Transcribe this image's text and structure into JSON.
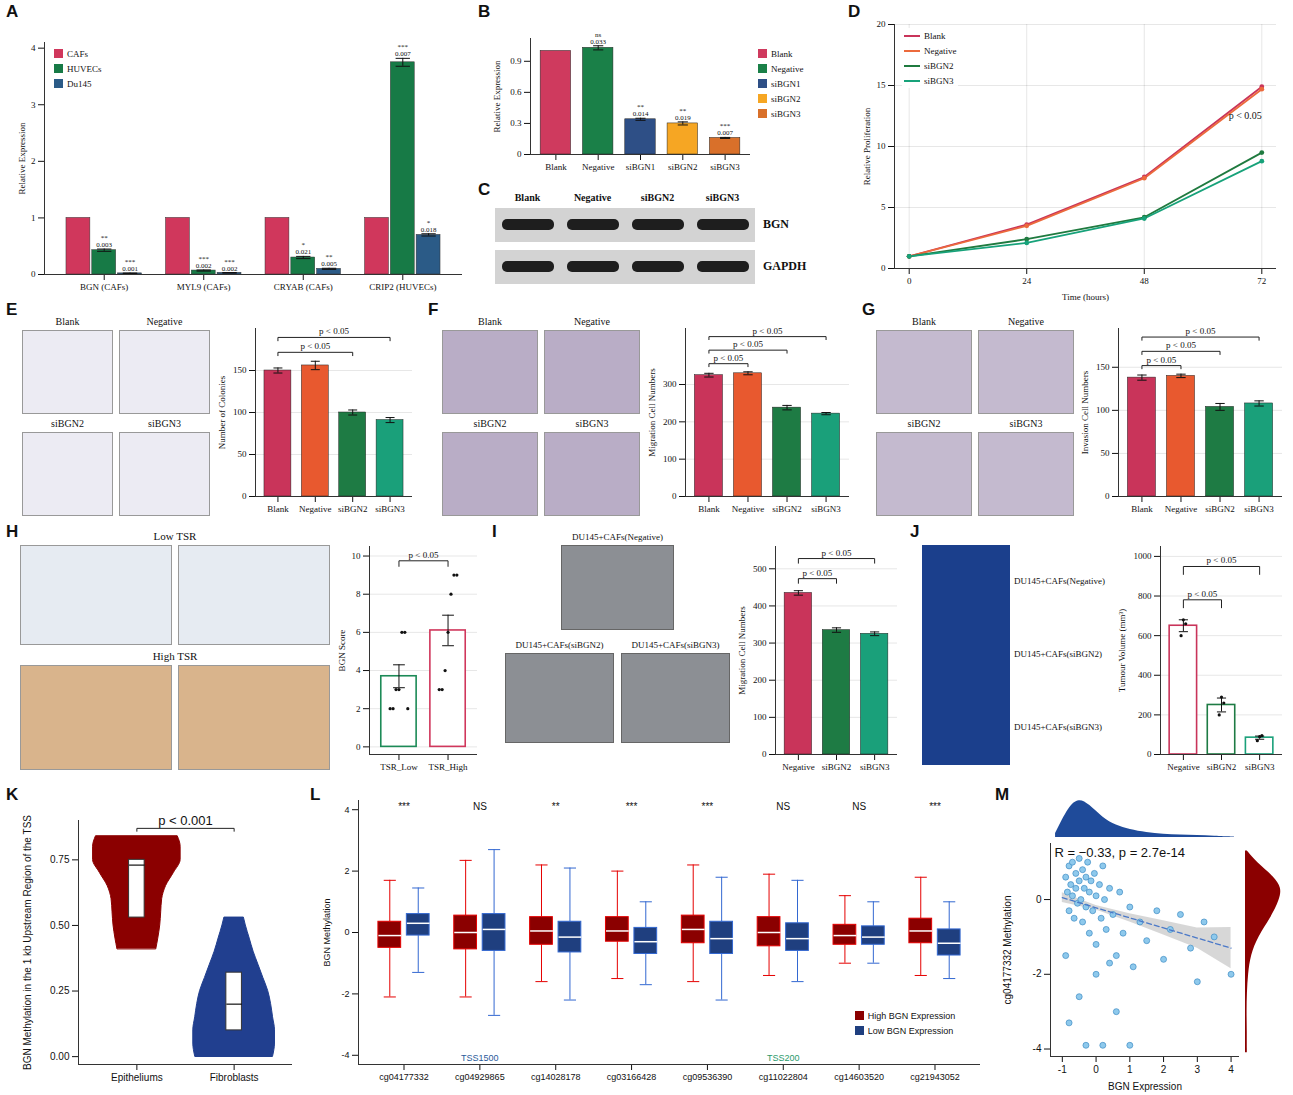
{
  "chart_data": [
    {
      "panel": "A",
      "type": "bar",
      "categories": [
        "BGN (CAFs)",
        "MYL9 (CAFs)",
        "CRYAB (CAFs)",
        "CRIP2 (HUVECs)"
      ],
      "series": [
        {
          "name": "CAFs",
          "color": "#d0375c",
          "values": [
            1,
            1,
            1,
            1
          ]
        },
        {
          "name": "HUVECs",
          "color": "#177a46",
          "values": [
            0.43,
            0.07,
            0.3,
            3.75
          ],
          "errors": [
            0.02,
            0.01,
            0.02,
            0.07
          ],
          "sig": [
            "**",
            "***",
            "*",
            "***"
          ],
          "p_values": [
            0.003,
            0.002,
            0.021,
            0.007
          ]
        },
        {
          "name": "Du145",
          "color": "#2b5b87",
          "values": [
            0.02,
            0.03,
            0.1,
            0.7
          ],
          "errors": [
            0.005,
            0.005,
            0.01,
            0.02
          ],
          "sig": [
            "***",
            "***",
            "**",
            "*"
          ],
          "p_values": [
            0.001,
            0.002,
            0.005,
            0.018
          ]
        }
      ],
      "ylabel": "Relative Expression",
      "ylim": [
        0,
        4.1
      ],
      "yticks": [
        0,
        1,
        2,
        3,
        4
      ],
      "legend": "top-left",
      "grid": false
    },
    {
      "panel": "B",
      "type": "bar",
      "categories": [
        "Blank",
        "Negative",
        "siBGN1",
        "siBGN2",
        "siBGN3"
      ],
      "values": [
        1,
        1.03,
        0.34,
        0.3,
        0.16
      ],
      "errors": [
        null,
        0.02,
        0.01,
        0.015,
        0.005
      ],
      "sig": [
        null,
        "ns",
        "**",
        "**",
        "***"
      ],
      "p_values": [
        null,
        0.033,
        0.014,
        0.019,
        0.007
      ],
      "colors": [
        "#cf3a5e",
        "#1a8048",
        "#2e4f86",
        "#f6a623",
        "#d9702a"
      ],
      "ylabel": "Relative Expression",
      "ylim": [
        0,
        1.12
      ],
      "yticks": [
        0,
        0.3,
        0.6,
        0.9
      ],
      "legend": "right",
      "grid": false
    },
    {
      "panel": "C",
      "type": "blot",
      "lanes": [
        "Blank",
        "Negative",
        "siBGN2",
        "siBGN3"
      ],
      "rows": [
        "BGN",
        "GAPDH"
      ]
    },
    {
      "panel": "D",
      "type": "line",
      "x": [
        0,
        24,
        48,
        72
      ],
      "series": [
        {
          "name": "Blank",
          "color": "#c9345a",
          "values": [
            1,
            3.6,
            7.5,
            14.9
          ]
        },
        {
          "name": "Negative",
          "color": "#ec6a3c",
          "values": [
            1,
            3.5,
            7.4,
            14.7
          ]
        },
        {
          "name": "siBGN2",
          "color": "#1f7a3f",
          "values": [
            1,
            2.4,
            4.2,
            9.5
          ]
        },
        {
          "name": "siBGN3",
          "color": "#17a27a",
          "values": [
            1,
            2.1,
            4.1,
            8.8
          ]
        }
      ],
      "xlabel": "Time (hours)",
      "ylabel": "Relative Proliferation",
      "xlim": [
        -3,
        75
      ],
      "xticks": [
        0,
        24,
        48,
        72
      ],
      "ylim": [
        0,
        20
      ],
      "yticks": [
        0,
        5,
        10,
        15,
        20
      ],
      "grid": true,
      "legend": "top-left",
      "marker": "circle",
      "annotations": [
        {
          "x": 72,
          "y": 12.5,
          "text": "p < 0.05"
        }
      ]
    },
    {
      "panel": "E",
      "type": "bar",
      "image_labels": [
        "Blank",
        "Negative",
        "siBGN2",
        "siBGN3"
      ],
      "categories": [
        "Blank",
        "Negative",
        "siBGN2",
        "siBGN3"
      ],
      "values": [
        150,
        156,
        100,
        91
      ],
      "errors": [
        3,
        5,
        3,
        3
      ],
      "colors": [
        "#c9345a",
        "#e8592f",
        "#1e7b44",
        "#1aa07a"
      ],
      "ylabel": "Number of Colonies",
      "ylim": [
        0,
        200
      ],
      "yticks": [
        0,
        50,
        100,
        150
      ],
      "grid": true,
      "brackets": [
        {
          "from": "Blank",
          "to": "siBGN2",
          "text": "p < 0.05"
        },
        {
          "from": "Blank",
          "to": "siBGN3",
          "text": "p < 0.05"
        }
      ]
    },
    {
      "panel": "F",
      "type": "bar",
      "image_labels": [
        "Blank",
        "Negative",
        "siBGN2",
        "siBGN3"
      ],
      "categories": [
        "Blank",
        "Negative",
        "siBGN2",
        "siBGN3"
      ],
      "values": [
        325,
        330,
        238,
        222
      ],
      "errors": [
        5,
        4,
        6,
        3
      ],
      "colors": [
        "#c9345a",
        "#e8592f",
        "#1e7b44",
        "#1aa07a"
      ],
      "ylabel": "Migration Cell Numbers",
      "ylim": [
        0,
        450
      ],
      "yticks": [
        0,
        100,
        200,
        300
      ],
      "grid": true,
      "brackets": [
        {
          "from": "Blank",
          "to": "Negative",
          "text": "p < 0.05"
        },
        {
          "from": "Blank",
          "to": "siBGN2",
          "text": "p < 0.05"
        },
        {
          "from": "Blank",
          "to": "siBGN3",
          "text": "p < 0.05"
        }
      ]
    },
    {
      "panel": "G",
      "type": "bar",
      "image_labels": [
        "Blank",
        "Negative",
        "siBGN2",
        "siBGN3"
      ],
      "categories": [
        "Blank",
        "Negative",
        "siBGN2",
        "siBGN3"
      ],
      "values": [
        138,
        140,
        104,
        108
      ],
      "errors": [
        3,
        2,
        4,
        3
      ],
      "colors": [
        "#c9345a",
        "#e8592f",
        "#1e7b44",
        "#1aa07a"
      ],
      "ylabel": "Invasion Cell Numbers",
      "ylim": [
        0,
        195
      ],
      "yticks": [
        0,
        50,
        100,
        150
      ],
      "grid": true,
      "brackets": [
        {
          "from": "Blank",
          "to": "Negative",
          "text": "p < 0.05"
        },
        {
          "from": "Blank",
          "to": "siBGN2",
          "text": "p < 0.05"
        },
        {
          "from": "Blank",
          "to": "siBGN3",
          "text": "p < 0.05"
        }
      ]
    },
    {
      "panel": "H",
      "type": "bar",
      "image_labels": [
        "Low TSR",
        "High TSR"
      ],
      "categories": [
        "TSR_Low",
        "TSR_High"
      ],
      "values": [
        3.7,
        6.1
      ],
      "errors": [
        0.6,
        0.8
      ],
      "points": [
        [
          2,
          2,
          3,
          3,
          6,
          6,
          2
        ],
        [
          3,
          3,
          4,
          6,
          8,
          9,
          9
        ]
      ],
      "colors": [
        "#1c8a57",
        "#d0375c"
      ],
      "ylabel": "BGN Score",
      "ylim": [
        -0.4,
        10.5
      ],
      "yticks": [
        0,
        2,
        4,
        6,
        8,
        10
      ],
      "grid": true,
      "brackets": [
        {
          "from": "TSR_Low",
          "to": "TSR_High",
          "text": "p < 0.05"
        }
      ]
    },
    {
      "panel": "I",
      "type": "bar",
      "image_labels": [
        "DU145+CAFs(Negative)",
        "DU145+CAFs(siBGN2)",
        "DU145+CAFs(siBGN3)"
      ],
      "categories": [
        "Negative",
        "siBGN2",
        "siBGN3"
      ],
      "values": [
        435,
        335,
        325
      ],
      "errors": [
        6,
        6,
        5
      ],
      "colors": [
        "#c9345a",
        "#1e7b44",
        "#1aa07a"
      ],
      "ylabel": "Migration Cell Numbers",
      "ylim": [
        0,
        560
      ],
      "yticks": [
        0,
        100,
        200,
        300,
        400,
        500
      ],
      "grid": true,
      "brackets": [
        {
          "from": "Negative",
          "to": "siBGN2",
          "text": "p < 0.05"
        },
        {
          "from": "Negative",
          "to": "siBGN3",
          "text": "p < 0.05"
        }
      ]
    },
    {
      "panel": "J",
      "type": "bar",
      "image_labels": [
        "DU145+CAFs(Negative)",
        "DU145+CAFs(siBGN2)",
        "DU145+CAFs(siBGN3)"
      ],
      "categories": [
        "Negative",
        "siBGN2",
        "siBGN3"
      ],
      "values": [
        650,
        250,
        85
      ],
      "errors": [
        30,
        35,
        8
      ],
      "points": [
        [
          600,
          680,
          660
        ],
        [
          200,
          290,
          260
        ],
        [
          70,
          90,
          95
        ]
      ],
      "colors": [
        "#c9345a",
        "#1e7b44",
        "#1aa07a"
      ],
      "ylabel": "Tumour Volume (mm³)",
      "ylim": [
        0,
        1050
      ],
      "yticks": [
        0,
        200,
        400,
        600,
        800,
        1000
      ],
      "grid": true,
      "brackets": [
        {
          "from": "Negative",
          "to": "siBGN2",
          "text": "p < 0.05"
        },
        {
          "from": "Negative",
          "to": "siBGN3",
          "text": "p < 0.05"
        }
      ]
    },
    {
      "panel": "K",
      "type": "violin",
      "categories": [
        "Epitheliums",
        "Fibroblasts"
      ],
      "colors": [
        "#8b0000",
        "#213f8f"
      ],
      "violins": [
        {
          "y": [
            0.41,
            0.45,
            0.5,
            0.55,
            0.6,
            0.65,
            0.7,
            0.75,
            0.8,
            0.84
          ],
          "half_width": [
            0.2,
            0.22,
            0.24,
            0.25,
            0.26,
            0.3,
            0.38,
            0.45,
            0.45,
            0.42
          ]
        },
        {
          "y": [
            0,
            0.05,
            0.1,
            0.15,
            0.2,
            0.25,
            0.3,
            0.35,
            0.4,
            0.45,
            0.5,
            0.53
          ],
          "half_width": [
            0.4,
            0.42,
            0.42,
            0.4,
            0.38,
            0.35,
            0.3,
            0.25,
            0.2,
            0.16,
            0.12,
            0.1
          ]
        }
      ],
      "box": [
        [
          0.53,
          0.73,
          0.75
        ],
        [
          0.1,
          0.2,
          0.32
        ]
      ],
      "ylabel": "BGN Methylation in the 1 kb Upstream Region of the TSS",
      "ylim": [
        -0.03,
        0.9
      ],
      "yticks": [
        {
          "value": 0,
          "label": "0.00"
        },
        {
          "value": 0.25,
          "label": "0.25"
        },
        {
          "value": 0.5,
          "label": "0.50"
        },
        {
          "value": 0.75,
          "label": "0.75"
        }
      ],
      "grid": false,
      "brackets": [
        {
          "from": "Epitheliums",
          "to": "Fibroblasts",
          "text": "p < 0.001"
        }
      ]
    },
    {
      "panel": "L",
      "type": "box",
      "categories": [
        "cg04177332",
        "cg04929865",
        "cg14028178",
        "cg03166428",
        "cg09536390",
        "cg11022804",
        "cg14603520",
        "cg21943052"
      ],
      "series": [
        {
          "name": "High BGN Expression",
          "color": "#8b0000",
          "boxes": [
            [
              -2.1,
              -0.5,
              -0.1,
              0.35,
              1.7
            ],
            [
              -2.1,
              -0.55,
              0,
              0.55,
              2.35
            ],
            [
              -1.6,
              -0.4,
              0.05,
              0.5,
              2.2
            ],
            [
              -1.5,
              -0.3,
              0.05,
              0.5,
              2.0
            ],
            [
              -1.6,
              -0.35,
              0.1,
              0.55,
              2.2
            ],
            [
              -1.4,
              -0.45,
              0,
              0.5,
              1.9
            ],
            [
              -1.0,
              -0.4,
              -0.1,
              0.25,
              1.2
            ],
            [
              -1.4,
              -0.35,
              0.05,
              0.45,
              1.8
            ]
          ]
        },
        {
          "name": "Low BGN Expression",
          "color": "#1f3f7f",
          "boxes": [
            [
              -1.3,
              -0.1,
              0.3,
              0.6,
              1.45
            ],
            [
              -2.7,
              -0.6,
              0.1,
              0.6,
              2.7
            ],
            [
              -2.2,
              -0.65,
              -0.15,
              0.35,
              2.1
            ],
            [
              -1.7,
              -0.7,
              -0.3,
              0.15,
              1.0
            ],
            [
              -2.2,
              -0.7,
              -0.2,
              0.35,
              1.8
            ],
            [
              -1.6,
              -0.6,
              -0.2,
              0.3,
              1.7
            ],
            [
              -1.0,
              -0.4,
              -0.15,
              0.2,
              1.0
            ],
            [
              -1.5,
              -0.75,
              -0.35,
              0.1,
              1.0
            ]
          ]
        }
      ],
      "sig": [
        "***",
        "NS",
        "**",
        "***",
        "***",
        "NS",
        "NS",
        "***"
      ],
      "annotations": [
        {
          "category": "cg04929865",
          "text": "TSS1500"
        },
        {
          "category": "cg11022804",
          "text": "TSS200"
        }
      ],
      "ylabel": "BGN Methylation",
      "ylim": [
        -4.3,
        4.3
      ],
      "yticks": [
        -4,
        -2,
        0,
        2,
        4
      ],
      "legend": "bottom-right",
      "grid": false
    },
    {
      "panel": "M",
      "type": "scatter",
      "color": "#8ec9ec",
      "marker": "circle",
      "points": {
        "x": [
          -0.9,
          -0.85,
          -0.8,
          -0.8,
          -0.75,
          -0.7,
          -0.7,
          -0.65,
          -0.6,
          -0.6,
          -0.55,
          -0.5,
          -0.5,
          -0.45,
          -0.4,
          -0.4,
          -0.35,
          -0.3,
          -0.3,
          -0.25,
          -0.2,
          -0.2,
          -0.15,
          -0.1,
          -0.05,
          0,
          0,
          0.1,
          0.15,
          0.2,
          0.25,
          0.3,
          0.4,
          0.5,
          0.6,
          0.7,
          0.8,
          1.0,
          1.1,
          1.3,
          1.5,
          1.8,
          2.0,
          2.2,
          2.5,
          2.8,
          3.0,
          3.2,
          3.5,
          4.0,
          -0.8,
          -0.3,
          0.2,
          0.6,
          1.0,
          -0.5,
          -0.9,
          0.0,
          0.4
        ],
        "y": [
          0.6,
          0.2,
          0.9,
          -0.3,
          0.4,
          1.0,
          0.1,
          -0.5,
          0.7,
          0.3,
          -0.1,
          0.5,
          1.1,
          0.0,
          0.8,
          -0.6,
          0.3,
          -0.2,
          0.6,
          1.0,
          0.2,
          -0.9,
          0.5,
          -0.3,
          0.7,
          0.1,
          -1.2,
          0.4,
          -0.5,
          0.9,
          0.0,
          -0.8,
          0.3,
          -0.4,
          -1.5,
          0.2,
          -0.9,
          -0.2,
          -1.8,
          -0.6,
          -1.1,
          -0.3,
          -1.6,
          -0.8,
          -0.4,
          -1.3,
          -2.2,
          -0.6,
          -1.0,
          -2.0,
          -3.3,
          -3.9,
          -3.9,
          -3.0,
          -3.9,
          -2.6,
          -1.5,
          -2.0,
          -1.7
        ]
      },
      "fit": {
        "x": [
          -1,
          0,
          1,
          2,
          3,
          4
        ],
        "y": [
          0.05,
          -0.22,
          -0.49,
          -0.76,
          -1.03,
          -1.3
        ],
        "lower": [
          -0.08,
          -0.28,
          -0.6,
          -0.95,
          -1.3,
          -1.85
        ],
        "upper": [
          0.18,
          -0.16,
          -0.38,
          -0.57,
          -0.76,
          -0.75
        ],
        "line_style": "dashed",
        "color": "#4a78c8"
      },
      "marginal_x": {
        "x": [
          -1.2,
          -0.8,
          -0.5,
          -0.2,
          0.2,
          0.6,
          1,
          1.5,
          2,
          2.5,
          3,
          3.5,
          4.1
        ],
        "density": [
          0.1,
          0.8,
          1,
          0.85,
          0.5,
          0.3,
          0.2,
          0.12,
          0.08,
          0.06,
          0.05,
          0.03,
          0.01
        ],
        "color": "#1f4b9a"
      },
      "marginal_y": {
        "y": [
          -4.1,
          -3.5,
          -3,
          -2.5,
          -2,
          -1.5,
          -1,
          -0.5,
          0,
          0.3,
          0.6,
          1,
          1.3
        ],
        "density": [
          0.05,
          0.05,
          0.04,
          0.05,
          0.08,
          0.15,
          0.35,
          0.7,
          0.95,
          1,
          0.8,
          0.3,
          0.05
        ],
        "color": "#8b0000"
      },
      "density_lim": [
        0,
        1.1
      ],
      "annotations": [
        {
          "text": "R = −0.33, p = 2.7e-14"
        }
      ],
      "xlabel": "BGN Expression",
      "ylabel": "cg04177332 Methylation",
      "xlim": [
        -1.35,
        4.25
      ],
      "xticks": [
        -1,
        0,
        1,
        2,
        3,
        4
      ],
      "ylim": [
        -4.2,
        1.5
      ],
      "yticks": [
        -4,
        -2,
        0
      ],
      "grid": false
    }
  ]
}
